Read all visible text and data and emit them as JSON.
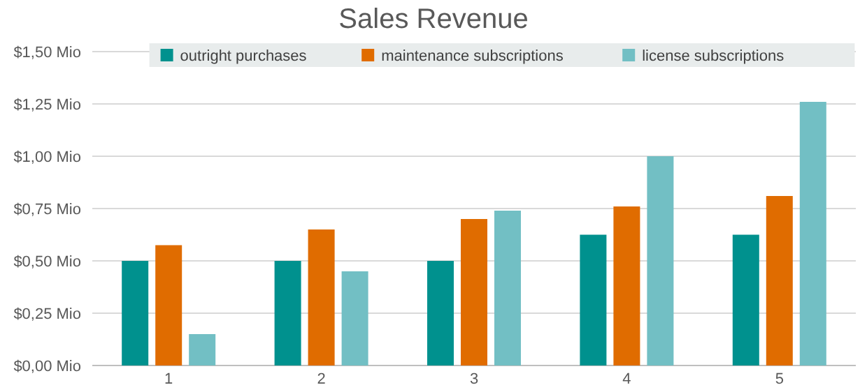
{
  "chart_data": {
    "type": "bar",
    "title": "Sales Revenue",
    "categories": [
      "1",
      "2",
      "3",
      "4",
      "5"
    ],
    "series": [
      {
        "name": "outright purchases",
        "color": "#00918e",
        "values": [
          0.5,
          0.5,
          0.5,
          0.625,
          0.625
        ]
      },
      {
        "name": "maintenance subscriptions",
        "color": "#e06c00",
        "values": [
          0.575,
          0.65,
          0.7,
          0.76,
          0.81
        ]
      },
      {
        "name": "license subscriptions",
        "color": "#72bfc4",
        "values": [
          0.15,
          0.45,
          0.74,
          1.0,
          1.26
        ]
      }
    ],
    "ylim": [
      0,
      1.5
    ],
    "yticks": [
      {
        "value": 0,
        "label": "$0,00 Mio"
      },
      {
        "value": 0.25,
        "label": "$0,25 Mio"
      },
      {
        "value": 0.5,
        "label": "$0,50 Mio"
      },
      {
        "value": 0.75,
        "label": "$0,75 Mio"
      },
      {
        "value": 1,
        "label": "$1,00 Mio"
      },
      {
        "value": 1.25,
        "label": "$1,25 Mio"
      },
      {
        "value": 1.5,
        "label": "$1,50 Mio"
      }
    ],
    "grid": "y",
    "legend": "top"
  }
}
